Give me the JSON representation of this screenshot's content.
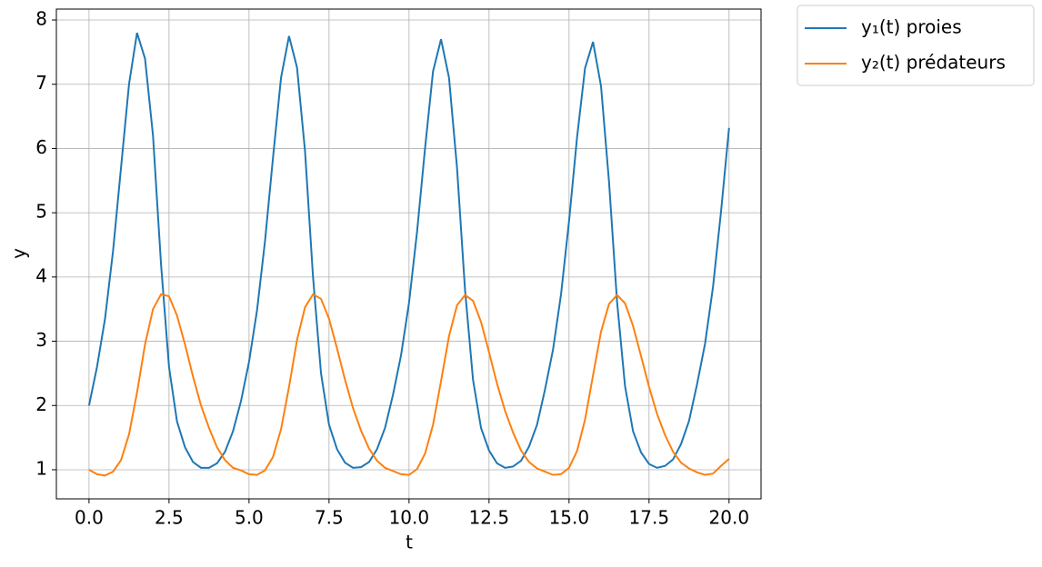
{
  "chart_data": {
    "type": "line",
    "x_label": "t",
    "y_label": "y",
    "x": [
      0,
      0.25,
      0.5,
      0.75,
      1,
      1.25,
      1.5,
      1.75,
      2,
      2.25,
      2.5,
      2.75,
      3,
      3.25,
      3.5,
      3.75,
      4,
      4.25,
      4.5,
      4.75,
      5,
      5.25,
      5.5,
      5.75,
      6,
      6.25,
      6.5,
      6.75,
      7,
      7.25,
      7.5,
      7.75,
      8,
      8.25,
      8.5,
      8.75,
      9,
      9.25,
      9.5,
      9.75,
      10,
      10.25,
      10.5,
      10.75,
      11,
      11.25,
      11.5,
      11.75,
      12,
      12.25,
      12.5,
      12.75,
      13,
      13.25,
      13.5,
      13.75,
      14,
      14.25,
      14.5,
      14.75,
      15,
      15.25,
      15.5,
      15.75,
      16,
      16.25,
      16.5,
      16.75,
      17,
      17.25,
      17.5,
      17.75,
      18,
      18.25,
      18.5,
      18.75,
      19,
      19.25,
      19.5,
      19.75,
      20
    ],
    "series": [
      {
        "name": "y₁(t) proies",
        "color": "#1f77b4",
        "values": [
          2.0,
          2.6,
          3.35,
          4.4,
          5.7,
          7.0,
          7.8,
          7.4,
          6.2,
          4.2,
          2.6,
          1.75,
          1.35,
          1.12,
          1.03,
          1.03,
          1.1,
          1.28,
          1.6,
          2.07,
          2.68,
          3.48,
          4.56,
          5.86,
          7.1,
          7.75,
          7.26,
          5.96,
          4.0,
          2.5,
          1.7,
          1.32,
          1.11,
          1.03,
          1.04,
          1.12,
          1.32,
          1.65,
          2.17,
          2.78,
          3.6,
          4.7,
          6.0,
          7.2,
          7.7,
          7.1,
          5.7,
          3.8,
          2.4,
          1.65,
          1.3,
          1.1,
          1.03,
          1.05,
          1.14,
          1.36,
          1.7,
          2.25,
          2.87,
          3.73,
          4.87,
          6.17,
          7.25,
          7.66,
          6.97,
          5.48,
          3.62,
          2.3,
          1.6,
          1.27,
          1.09,
          1.03,
          1.06,
          1.16,
          1.4,
          1.76,
          2.33,
          2.96,
          3.85,
          5.02,
          6.32
        ]
      },
      {
        "name": "y₂(t) prédateurs",
        "color": "#ff7f0e",
        "values": [
          1.0,
          0.93,
          0.91,
          0.97,
          1.15,
          1.55,
          2.2,
          2.95,
          3.5,
          3.73,
          3.7,
          3.4,
          2.95,
          2.45,
          2.0,
          1.65,
          1.35,
          1.15,
          1.03,
          0.99,
          0.93,
          0.92,
          0.99,
          1.2,
          1.63,
          2.29,
          3.02,
          3.53,
          3.73,
          3.66,
          3.35,
          2.89,
          2.4,
          1.96,
          1.61,
          1.33,
          1.14,
          1.03,
          0.98,
          0.93,
          0.92,
          1.01,
          1.25,
          1.7,
          2.38,
          3.08,
          3.56,
          3.72,
          3.63,
          3.3,
          2.83,
          2.34,
          1.92,
          1.58,
          1.3,
          1.12,
          1.02,
          0.97,
          0.92,
          0.93,
          1.03,
          1.29,
          1.78,
          2.47,
          3.15,
          3.58,
          3.72,
          3.59,
          3.24,
          2.77,
          2.29,
          1.87,
          1.54,
          1.28,
          1.11,
          1.02,
          0.96,
          0.92,
          0.94,
          1.06,
          1.17
        ]
      }
    ],
    "xlim": [
      -1.02,
      21.0
    ],
    "ylim": [
      0.547,
      8.17
    ],
    "xticks": [
      {
        "value": 0,
        "label": "0.0"
      },
      {
        "value": 2.5,
        "label": "2.5"
      },
      {
        "value": 5,
        "label": "5.0"
      },
      {
        "value": 7.5,
        "label": "7.5"
      },
      {
        "value": 10,
        "label": "10.0"
      },
      {
        "value": 12.5,
        "label": "12.5"
      },
      {
        "value": 15,
        "label": "15.0"
      },
      {
        "value": 17.5,
        "label": "17.5"
      },
      {
        "value": 20,
        "label": "20.0"
      }
    ],
    "yticks": [
      1,
      2,
      3,
      4,
      5,
      6,
      7,
      8
    ],
    "grid": true,
    "legend": "outside-upper-right"
  }
}
